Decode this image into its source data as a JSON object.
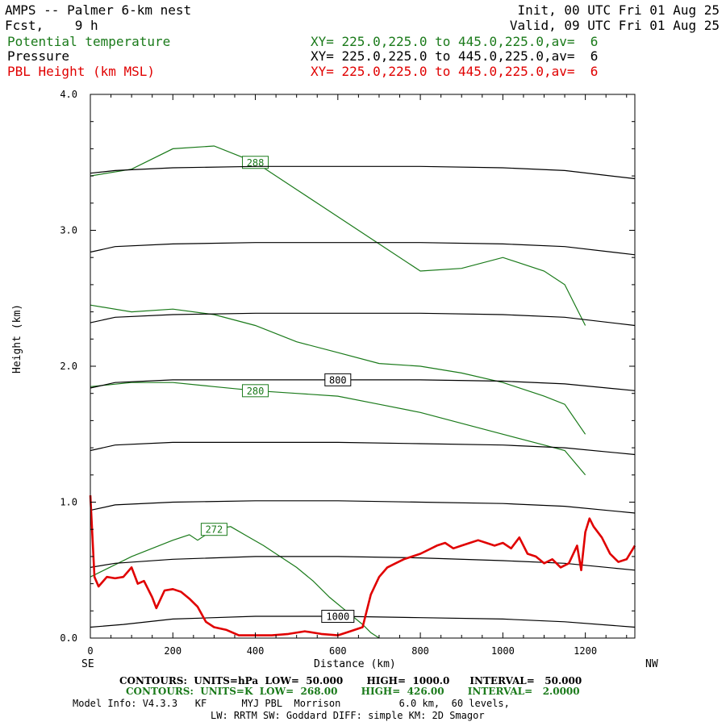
{
  "header": {
    "title": "AMPS -- Palmer 6-km nest",
    "fcst": "Fcst,    9 h",
    "init": "Init, 00 UTC Fri 01 Aug 25",
    "valid": "Valid, 09 UTC Fri 01 Aug 25",
    "fields": [
      {
        "name": "Potential temperature",
        "xy": "XY= 225.0,225.0 to 445.0,225.0,av=  6",
        "color": "#1a7a1a"
      },
      {
        "name": "Pressure",
        "xy": "XY= 225.0,225.0 to 445.0,225.0,av=  6",
        "color": "#000000"
      },
      {
        "name": "PBL Height (km MSL)",
        "xy": "XY= 225.0,225.0 to 445.0,225.0,av=  6",
        "color": "#e00000"
      }
    ]
  },
  "axes": {
    "ylabel": "Height (km)",
    "xlabel": "Distance (km)",
    "left_end": "SE",
    "right_end": "NW"
  },
  "footer": {
    "line1": "CONTOURS:  UNITS=hPa  LOW=  50.000       HIGH=  1000.0      INTERVAL=   50.000",
    "line2": "CONTOURS:  UNITS=K  LOW=  268.00       HIGH=  426.00       INTERVAL=   2.0000",
    "line3": "Model Info: V4.3.3   KF      MYJ PBL  Morrison          6.0 km,  60 levels,",
    "line4": "LW: RRTM SW: Goddard DIFF: simple KM: 2D Smagor"
  },
  "colors": {
    "theta": "#1a7a1a",
    "pressure": "#000000",
    "pbl": "#e00000"
  },
  "chart_data": {
    "type": "line",
    "title": "AMPS -- Palmer 6-km nest",
    "xlabel": "Distance (km)",
    "ylabel": "Height (km)",
    "xlim": [
      0,
      1320
    ],
    "ylim": [
      0,
      4.0
    ],
    "x_ticks": [
      0,
      200,
      400,
      600,
      800,
      1000,
      1200
    ],
    "y_ticks": [
      0.0,
      1.0,
      2.0,
      3.0,
      4.0
    ],
    "y_tick_labels": [
      "0.0",
      "1.0",
      "2.0",
      "3.0",
      "4.0"
    ],
    "series": [
      {
        "name": "PBL Height (km MSL)",
        "color": "#e00000",
        "x": [
          0,
          10,
          20,
          40,
          60,
          80,
          100,
          115,
          130,
          150,
          160,
          180,
          200,
          220,
          240,
          260,
          280,
          300,
          330,
          360,
          400,
          440,
          480,
          520,
          560,
          600,
          630,
          660,
          680,
          700,
          720,
          740,
          760,
          780,
          800,
          820,
          840,
          860,
          880,
          900,
          920,
          940,
          960,
          980,
          1000,
          1020,
          1040,
          1060,
          1080,
          1100,
          1120,
          1140,
          1160,
          1180,
          1190,
          1200,
          1210,
          1220,
          1240,
          1260,
          1280,
          1300,
          1320
        ],
        "y": [
          1.05,
          0.45,
          0.38,
          0.45,
          0.44,
          0.45,
          0.52,
          0.4,
          0.42,
          0.3,
          0.22,
          0.35,
          0.36,
          0.34,
          0.29,
          0.23,
          0.12,
          0.08,
          0.06,
          0.02,
          0.02,
          0.02,
          0.03,
          0.05,
          0.03,
          0.02,
          0.05,
          0.08,
          0.32,
          0.45,
          0.52,
          0.55,
          0.58,
          0.6,
          0.62,
          0.65,
          0.68,
          0.7,
          0.66,
          0.68,
          0.7,
          0.72,
          0.7,
          0.68,
          0.7,
          0.66,
          0.74,
          0.62,
          0.6,
          0.55,
          0.58,
          0.52,
          0.55,
          0.68,
          0.5,
          0.78,
          0.88,
          0.82,
          0.74,
          0.62,
          0.56,
          0.58,
          0.68
        ]
      },
      {
        "name": "Pressure",
        "color": "#000000",
        "lines": [
          {
            "label": "1000",
            "x": [
              0,
              80,
              200,
              400,
              600,
              800,
              1000,
              1150,
              1320
            ],
            "y": [
              0.08,
              0.1,
              0.14,
              0.16,
              0.16,
              0.15,
              0.14,
              0.12,
              0.08
            ]
          },
          {
            "label": "",
            "x": [
              0,
              60,
              200,
              400,
              600,
              800,
              1000,
              1150,
              1320
            ],
            "y": [
              0.52,
              0.55,
              0.58,
              0.6,
              0.6,
              0.59,
              0.57,
              0.55,
              0.5
            ]
          },
          {
            "label": "",
            "x": [
              0,
              60,
              200,
              400,
              600,
              800,
              1000,
              1150,
              1320
            ],
            "y": [
              0.94,
              0.98,
              1.0,
              1.01,
              1.01,
              1.0,
              0.99,
              0.97,
              0.92
            ]
          },
          {
            "label": "",
            "x": [
              0,
              60,
              200,
              400,
              600,
              800,
              1000,
              1150,
              1320
            ],
            "y": [
              1.38,
              1.42,
              1.44,
              1.44,
              1.44,
              1.43,
              1.42,
              1.4,
              1.35
            ]
          },
          {
            "label": "800",
            "x": [
              0,
              60,
              200,
              400,
              600,
              800,
              1000,
              1150,
              1320
            ],
            "y": [
              1.84,
              1.88,
              1.9,
              1.9,
              1.9,
              1.9,
              1.89,
              1.87,
              1.82
            ]
          },
          {
            "label": "",
            "x": [
              0,
              60,
              200,
              400,
              600,
              800,
              1000,
              1150,
              1320
            ],
            "y": [
              2.32,
              2.36,
              2.38,
              2.39,
              2.39,
              2.39,
              2.38,
              2.36,
              2.3
            ]
          },
          {
            "label": "",
            "x": [
              0,
              60,
              200,
              400,
              600,
              800,
              1000,
              1150,
              1320
            ],
            "y": [
              2.84,
              2.88,
              2.9,
              2.91,
              2.91,
              2.91,
              2.9,
              2.88,
              2.82
            ]
          },
          {
            "label": "",
            "x": [
              0,
              60,
              200,
              400,
              600,
              800,
              1000,
              1150,
              1320
            ],
            "y": [
              3.42,
              3.44,
              3.46,
              3.47,
              3.47,
              3.47,
              3.46,
              3.44,
              3.38
            ]
          }
        ]
      },
      {
        "name": "Potential temperature",
        "color": "#1a7a1a",
        "lines": [
          {
            "label": "272",
            "x": [
              0,
              100,
              200,
              240,
              260,
              300,
              340,
              380,
              420,
              460,
              500,
              540,
              580,
              620,
              660,
              680,
              700
            ],
            "y": [
              0.45,
              0.6,
              0.72,
              0.76,
              0.72,
              0.8,
              0.82,
              0.75,
              0.68,
              0.6,
              0.52,
              0.42,
              0.3,
              0.2,
              0.1,
              0.04,
              0.0
            ]
          },
          {
            "label": "280",
            "x": [
              0,
              100,
              200,
              300,
              400,
              500,
              600,
              700,
              800,
              900,
              1000,
              1100,
              1150,
              1200
            ],
            "y": [
              1.85,
              1.88,
              1.88,
              1.85,
              1.82,
              1.8,
              1.78,
              1.72,
              1.66,
              1.58,
              1.5,
              1.42,
              1.38,
              1.2
            ]
          },
          {
            "label": "",
            "x": [
              0,
              100,
              200,
              300,
              400,
              500,
              600,
              700,
              800,
              900,
              1000,
              1100,
              1150,
              1200
            ],
            "y": [
              2.45,
              2.4,
              2.42,
              2.38,
              2.3,
              2.18,
              2.1,
              2.02,
              2.0,
              1.95,
              1.88,
              1.78,
              1.72,
              1.5
            ]
          },
          {
            "label": "288",
            "x": [
              0,
              100,
              200,
              300,
              400,
              500,
              600,
              700,
              800,
              900,
              1000,
              1100,
              1150,
              1200
            ],
            "y": [
              3.4,
              3.45,
              3.6,
              3.62,
              3.5,
              3.3,
              3.1,
              2.9,
              2.7,
              2.72,
              2.8,
              2.7,
              2.6,
              2.3
            ]
          }
        ]
      }
    ]
  }
}
